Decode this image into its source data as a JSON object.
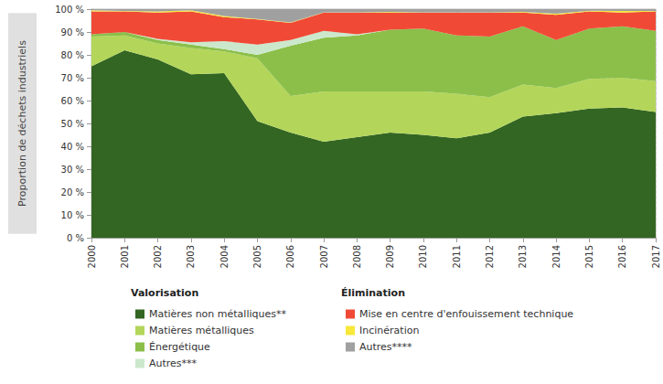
{
  "chart_data": {
    "type": "area",
    "stacked": true,
    "grid": true,
    "y_label": "Proportion de déchets industriels",
    "categories": [
      "2000",
      "2001",
      "2002",
      "2003",
      "2004",
      "2005",
      "2006",
      "2007",
      "2008",
      "2009",
      "2010",
      "2011",
      "2012",
      "2013",
      "2014",
      "2015",
      "2016",
      "2017"
    ],
    "ylim": [
      0,
      100
    ],
    "yticks": [
      {
        "value": 0,
        "label": "0 %"
      },
      {
        "value": 10,
        "label": "10 %"
      },
      {
        "value": 20,
        "label": "20 %"
      },
      {
        "value": 30,
        "label": "30 %"
      },
      {
        "value": 40,
        "label": "40 %"
      },
      {
        "value": 50,
        "label": "50 %"
      },
      {
        "value": 60,
        "label": "60 %"
      },
      {
        "value": 70,
        "label": "70 %"
      },
      {
        "value": 80,
        "label": "80 %"
      },
      {
        "value": 90,
        "label": "90 %"
      },
      {
        "value": 100,
        "label": "100 %"
      }
    ],
    "series": [
      {
        "name": "Matières non métalliques**",
        "group": "Valorisation",
        "color": "#336622",
        "values": [
          75,
          82,
          78,
          71.5,
          72,
          51,
          46,
          42,
          44,
          46,
          45,
          43.5,
          46,
          53,
          54.5,
          56.5,
          57,
          55
        ]
      },
      {
        "name": "Matières métalliques",
        "group": "Valorisation",
        "color": "#b3d65a",
        "values": [
          13,
          6.5,
          7,
          11.5,
          9.5,
          27.5,
          16,
          22,
          20,
          18,
          19,
          19.5,
          15.5,
          14,
          11,
          13,
          13,
          13.5
        ]
      },
      {
        "name": "Énergétique",
        "group": "Valorisation",
        "color": "#8bbf4a",
        "values": [
          1,
          1.5,
          1.5,
          1.5,
          1,
          1.5,
          22,
          23.5,
          24.5,
          27,
          27.5,
          25.5,
          26.5,
          25.5,
          21,
          22,
          22.5,
          22
        ]
      },
      {
        "name": "Autres***",
        "group": "Valorisation",
        "color": "#cce8cc",
        "values": [
          0,
          0,
          0.5,
          1,
          3.5,
          4.5,
          2.5,
          3,
          0.5,
          0,
          0,
          0,
          0,
          0,
          0,
          0,
          0,
          0
        ]
      },
      {
        "name": "Mise en centre d'enfouissement technique",
        "group": "Élimination",
        "color": "#f04a36",
        "values": [
          10,
          9,
          11.5,
          13.5,
          10.5,
          11,
          7.5,
          8,
          9.5,
          7.5,
          7,
          10,
          10.5,
          6,
          11,
          7.5,
          6,
          8.5
        ]
      },
      {
        "name": "Incinération",
        "group": "Élimination",
        "color": "#f7e83a",
        "values": [
          0.5,
          0.2,
          0.5,
          0.5,
          0.5,
          0.2,
          0.2,
          0.1,
          0.1,
          0.3,
          0.1,
          0.1,
          0.1,
          0.3,
          0.5,
          0.3,
          0.7,
          0.2
        ]
      },
      {
        "name": "Autres****",
        "group": "Élimination",
        "color": "#a0a0a0",
        "values": [
          0.5,
          0.8,
          1,
          0.5,
          3,
          4.3,
          5.8,
          1.4,
          1.4,
          1.2,
          1.4,
          1.4,
          1.4,
          1.2,
          2,
          0.7,
          0.8,
          0.8
        ]
      }
    ]
  }
}
